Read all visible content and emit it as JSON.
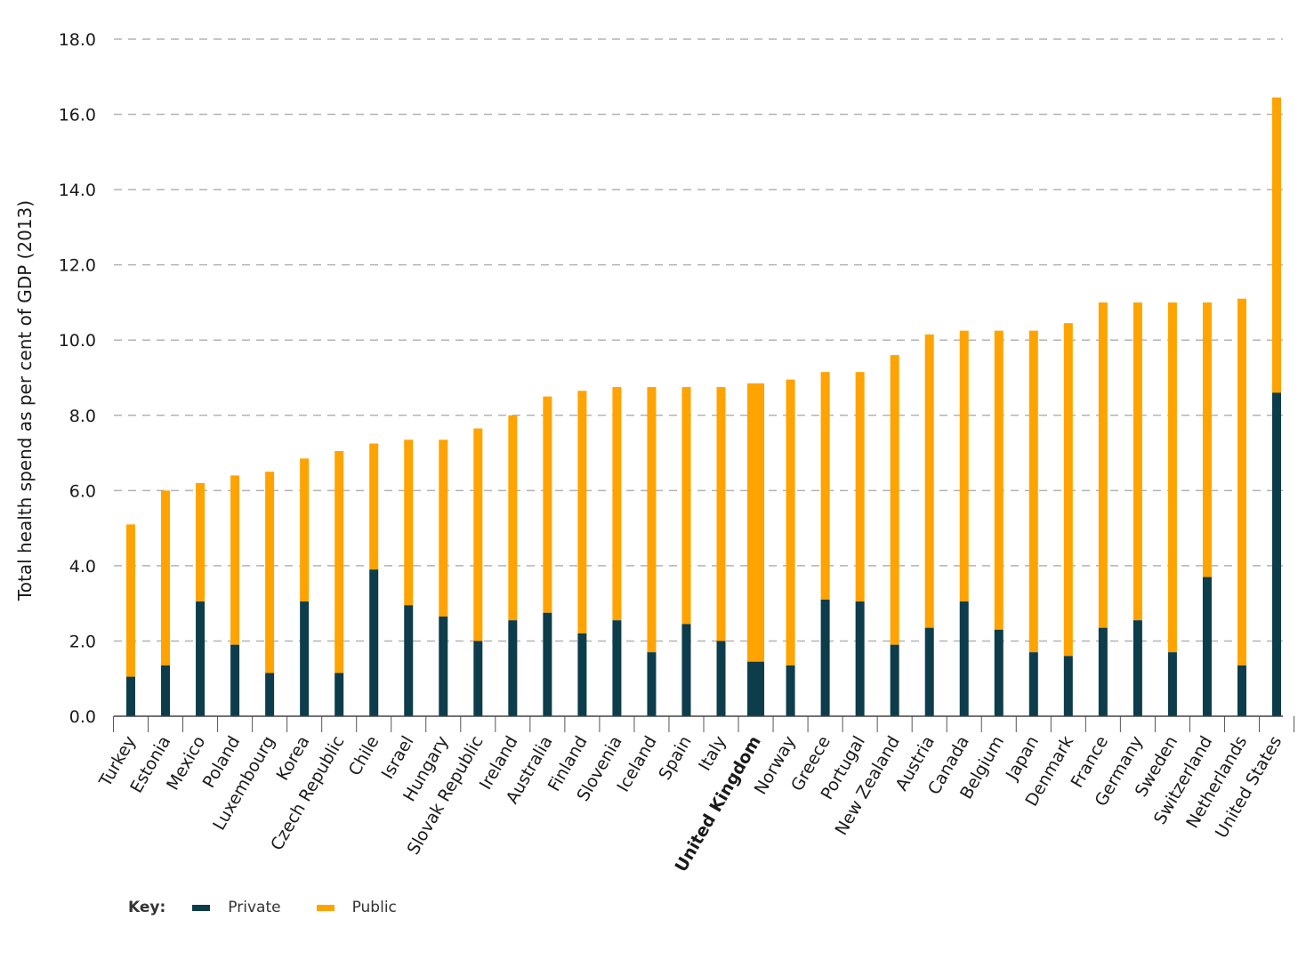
{
  "chart_data": {
    "type": "bar",
    "stacked": true,
    "ylabel": "Total health spend as per cent of GDP (2013)",
    "ylim": [
      0,
      18
    ],
    "yticks": [
      "0.0",
      "2.0",
      "4.0",
      "6.0",
      "8.0",
      "10.0",
      "12.0",
      "14.0",
      "16.0",
      "18.0"
    ],
    "grid": "horizontal dashed",
    "highlight": "United Kingdom",
    "categories": [
      "Turkey",
      "Estonia",
      "Mexico",
      "Poland",
      "Luxembourg",
      "Korea",
      "Czech Republic",
      "Chile",
      "Israel",
      "Hungary",
      "Slovak Republic",
      "Ireland",
      "Australia",
      "Finland",
      "Slovenia",
      "Iceland",
      "Spain",
      "Italy",
      "United Kingdom",
      "Norway",
      "Greece",
      "Portugal",
      "New Zealand",
      "Austria",
      "Canada",
      "Belgium",
      "Japan",
      "Denmark",
      "France",
      "Germany",
      "Sweden",
      "Switzerland",
      "Netherlands",
      "United States"
    ],
    "series": [
      {
        "name": "Private",
        "color": "#0d3c4b",
        "values": [
          1.05,
          1.35,
          3.05,
          1.9,
          1.15,
          3.05,
          1.15,
          3.9,
          2.95,
          2.65,
          2.0,
          2.55,
          2.75,
          2.2,
          2.55,
          1.7,
          2.45,
          2.0,
          1.45,
          1.35,
          3.1,
          3.05,
          1.9,
          2.35,
          3.05,
          2.3,
          1.7,
          1.6,
          2.35,
          2.55,
          1.7,
          3.7,
          1.35,
          8.6
        ]
      },
      {
        "name": "Public",
        "color": "#ffa300",
        "values": [
          4.05,
          4.65,
          3.15,
          4.5,
          5.35,
          3.8,
          5.9,
          3.35,
          4.4,
          4.7,
          5.65,
          5.45,
          5.75,
          6.45,
          6.2,
          7.05,
          6.3,
          6.75,
          7.4,
          7.6,
          6.05,
          6.1,
          7.7,
          7.8,
          7.2,
          7.95,
          8.55,
          8.85,
          8.65,
          8.45,
          9.3,
          7.3,
          9.75,
          7.85
        ]
      }
    ]
  },
  "legend": {
    "title": "Key:",
    "items": [
      {
        "label": "Private",
        "color": "#0d3c4b"
      },
      {
        "label": "Public",
        "color": "#ffa300"
      }
    ]
  }
}
